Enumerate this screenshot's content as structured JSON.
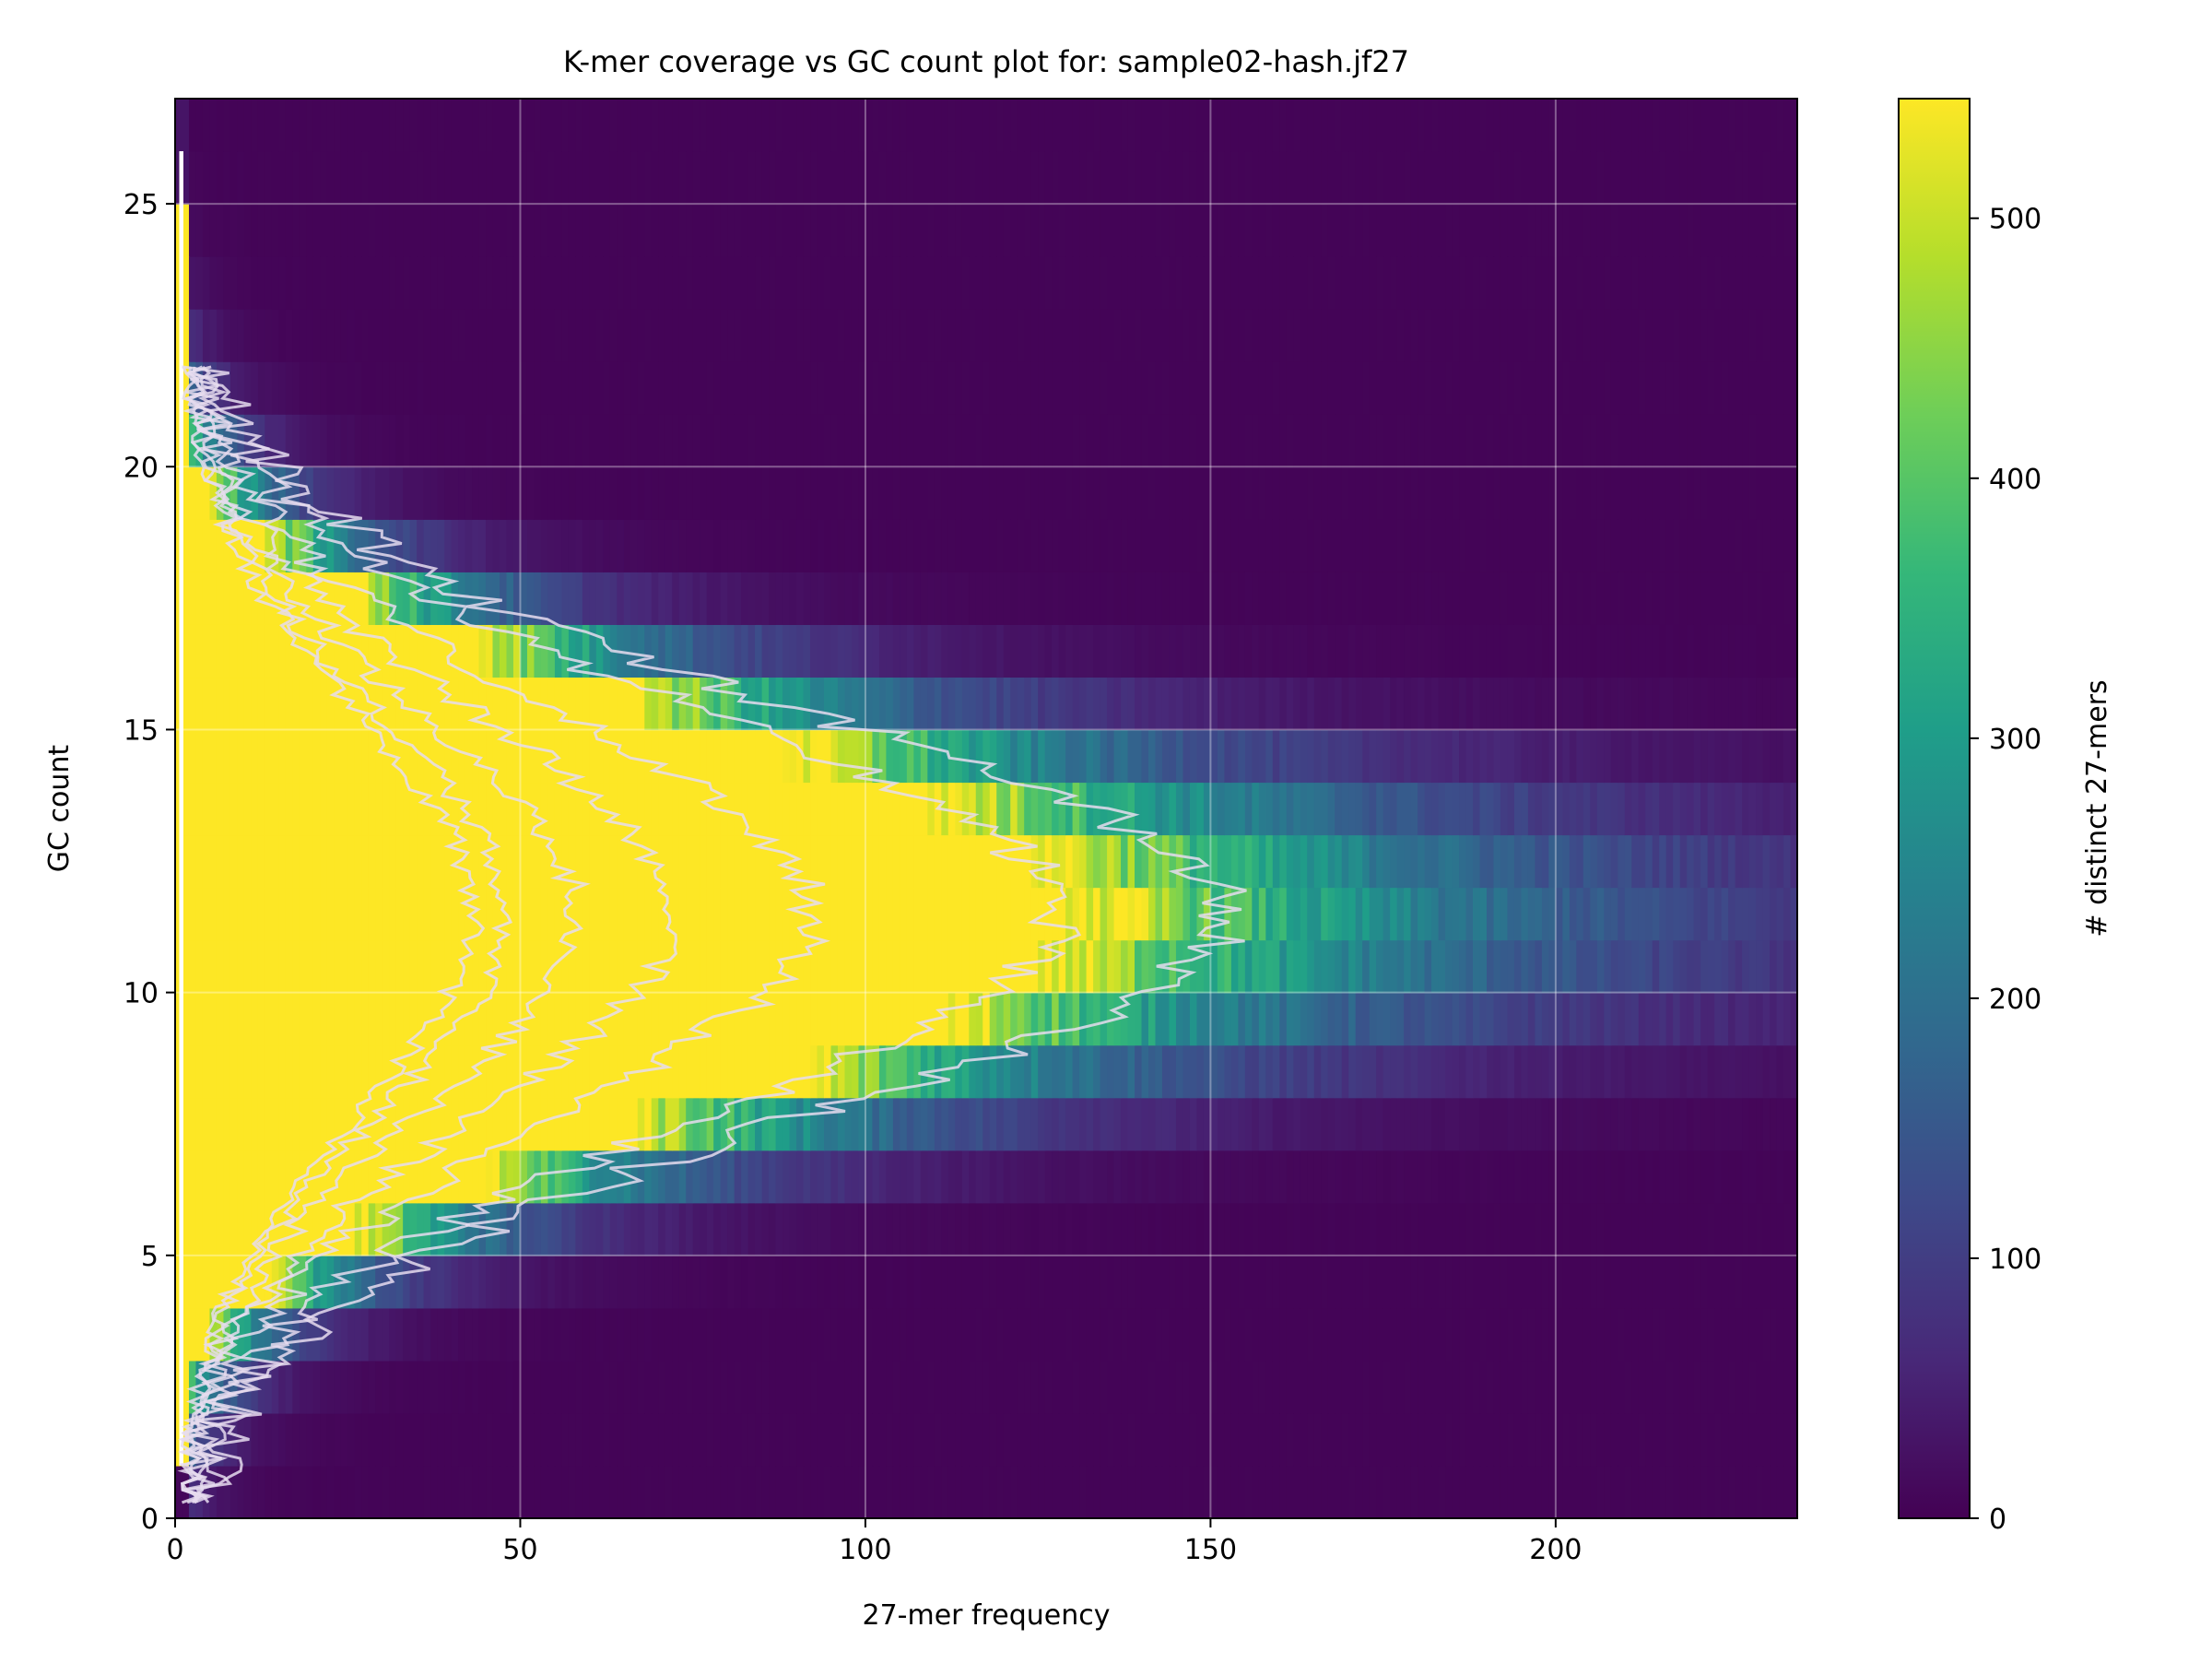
{
  "chart_data": {
    "type": "heatmap",
    "title": "K-mer coverage vs GC count plot for: sample02-hash.jf27",
    "xlabel": "27-mer frequency",
    "ylabel": "GC count",
    "colorbar_label": "# distinct 27-mers",
    "colormap": "viridis",
    "colormap_stops": [
      "#440154",
      "#482878",
      "#3e4989",
      "#31688e",
      "#26828e",
      "#1f9e89",
      "#35b779",
      "#6ece58",
      "#b5de2b",
      "#fde725"
    ],
    "xlim": [
      0,
      235
    ],
    "ylim": [
      0,
      27
    ],
    "clim": [
      0,
      546
    ],
    "x_ticks": [
      0,
      50,
      100,
      150,
      200
    ],
    "x_tick_labels": [
      "0",
      "50",
      "100",
      "150",
      "200"
    ],
    "y_ticks": [
      0,
      5,
      10,
      15,
      20,
      25
    ],
    "y_tick_labels": [
      "0",
      "5",
      "10",
      "15",
      "20",
      "25"
    ],
    "colorbar_ticks": [
      0,
      100,
      200,
      300,
      400,
      500
    ],
    "colorbar_tick_labels": [
      "0",
      "100",
      "200",
      "300",
      "400",
      "500"
    ],
    "grid": true,
    "gc_count_bins": 27,
    "gc_profile_mean": 11.5,
    "gc_profile_sd": 3.6,
    "peak_count_at_low_frequency": 546,
    "contour_color": "#e6dcef",
    "contours": [
      {
        "level": 500,
        "half_width_at_peak": 43
      },
      {
        "level": 400,
        "half_width_at_peak": 48
      },
      {
        "level": 300,
        "half_width_at_peak": 58
      },
      {
        "level": 200,
        "half_width_at_peak": 72
      },
      {
        "level": 100,
        "half_width_at_peak": 92
      },
      {
        "level": 40,
        "half_width_at_peak": 128
      },
      {
        "level": 15,
        "half_width_at_peak": 152
      }
    ]
  }
}
